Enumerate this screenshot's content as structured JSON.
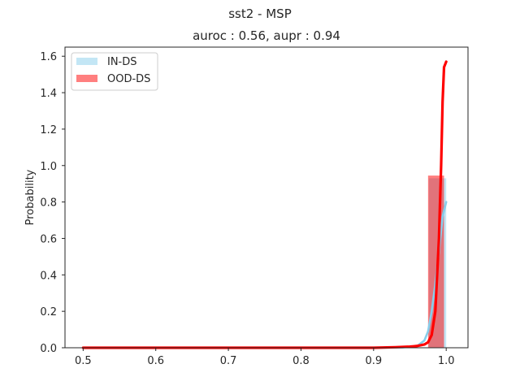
{
  "chart_data": {
    "type": "histogram",
    "suptitle": "sst2 - MSP",
    "title": "auroc : 0.56, aupr : 0.94",
    "xlabel": "",
    "ylabel": "Probability",
    "xlim": [
      0.475,
      1.03
    ],
    "ylim": [
      0,
      1.65
    ],
    "xticks": [
      0.5,
      0.6,
      0.7,
      0.8,
      0.9,
      1.0
    ],
    "xtick_labels": [
      "0.5",
      "0.6",
      "0.7",
      "0.8",
      "0.9",
      "1.0"
    ],
    "yticks": [
      0.0,
      0.2,
      0.4,
      0.6,
      0.8,
      1.0,
      1.2,
      1.4,
      1.6
    ],
    "ytick_labels": [
      "0.0",
      "0.2",
      "0.4",
      "0.6",
      "0.8",
      "1.0",
      "1.2",
      "1.4",
      "1.6"
    ],
    "grid": false,
    "legend_position": "top-left",
    "series": [
      {
        "name": "IN-DS",
        "color": "#87ceeb",
        "fill_alpha": 0.5,
        "bars": [
          {
            "x0": 0.976,
            "x1": 1.0,
            "height": 0.93
          }
        ],
        "kde": [
          [
            0.5,
            0.0
          ],
          [
            0.9,
            0.0
          ],
          [
            0.94,
            0.002
          ],
          [
            0.96,
            0.01
          ],
          [
            0.97,
            0.04
          ],
          [
            0.975,
            0.09
          ],
          [
            0.98,
            0.2
          ],
          [
            0.985,
            0.35
          ],
          [
            0.99,
            0.53
          ],
          [
            0.995,
            0.72
          ],
          [
            1.0,
            0.8
          ]
        ]
      },
      {
        "name": "OOD-DS",
        "color": "#ff0000",
        "fill_alpha": 0.5,
        "bars": [
          {
            "x0": 0.975,
            "x1": 0.997,
            "height": 0.945
          }
        ],
        "kde": [
          [
            0.5,
            0.0
          ],
          [
            0.9,
            0.0
          ],
          [
            0.93,
            0.003
          ],
          [
            0.95,
            0.006
          ],
          [
            0.96,
            0.01
          ],
          [
            0.97,
            0.018
          ],
          [
            0.975,
            0.03
          ],
          [
            0.98,
            0.07
          ],
          [
            0.985,
            0.2
          ],
          [
            0.99,
            0.6
          ],
          [
            0.993,
            1.0
          ],
          [
            0.995,
            1.35
          ],
          [
            0.997,
            1.54
          ],
          [
            1.0,
            1.57
          ]
        ]
      }
    ]
  }
}
